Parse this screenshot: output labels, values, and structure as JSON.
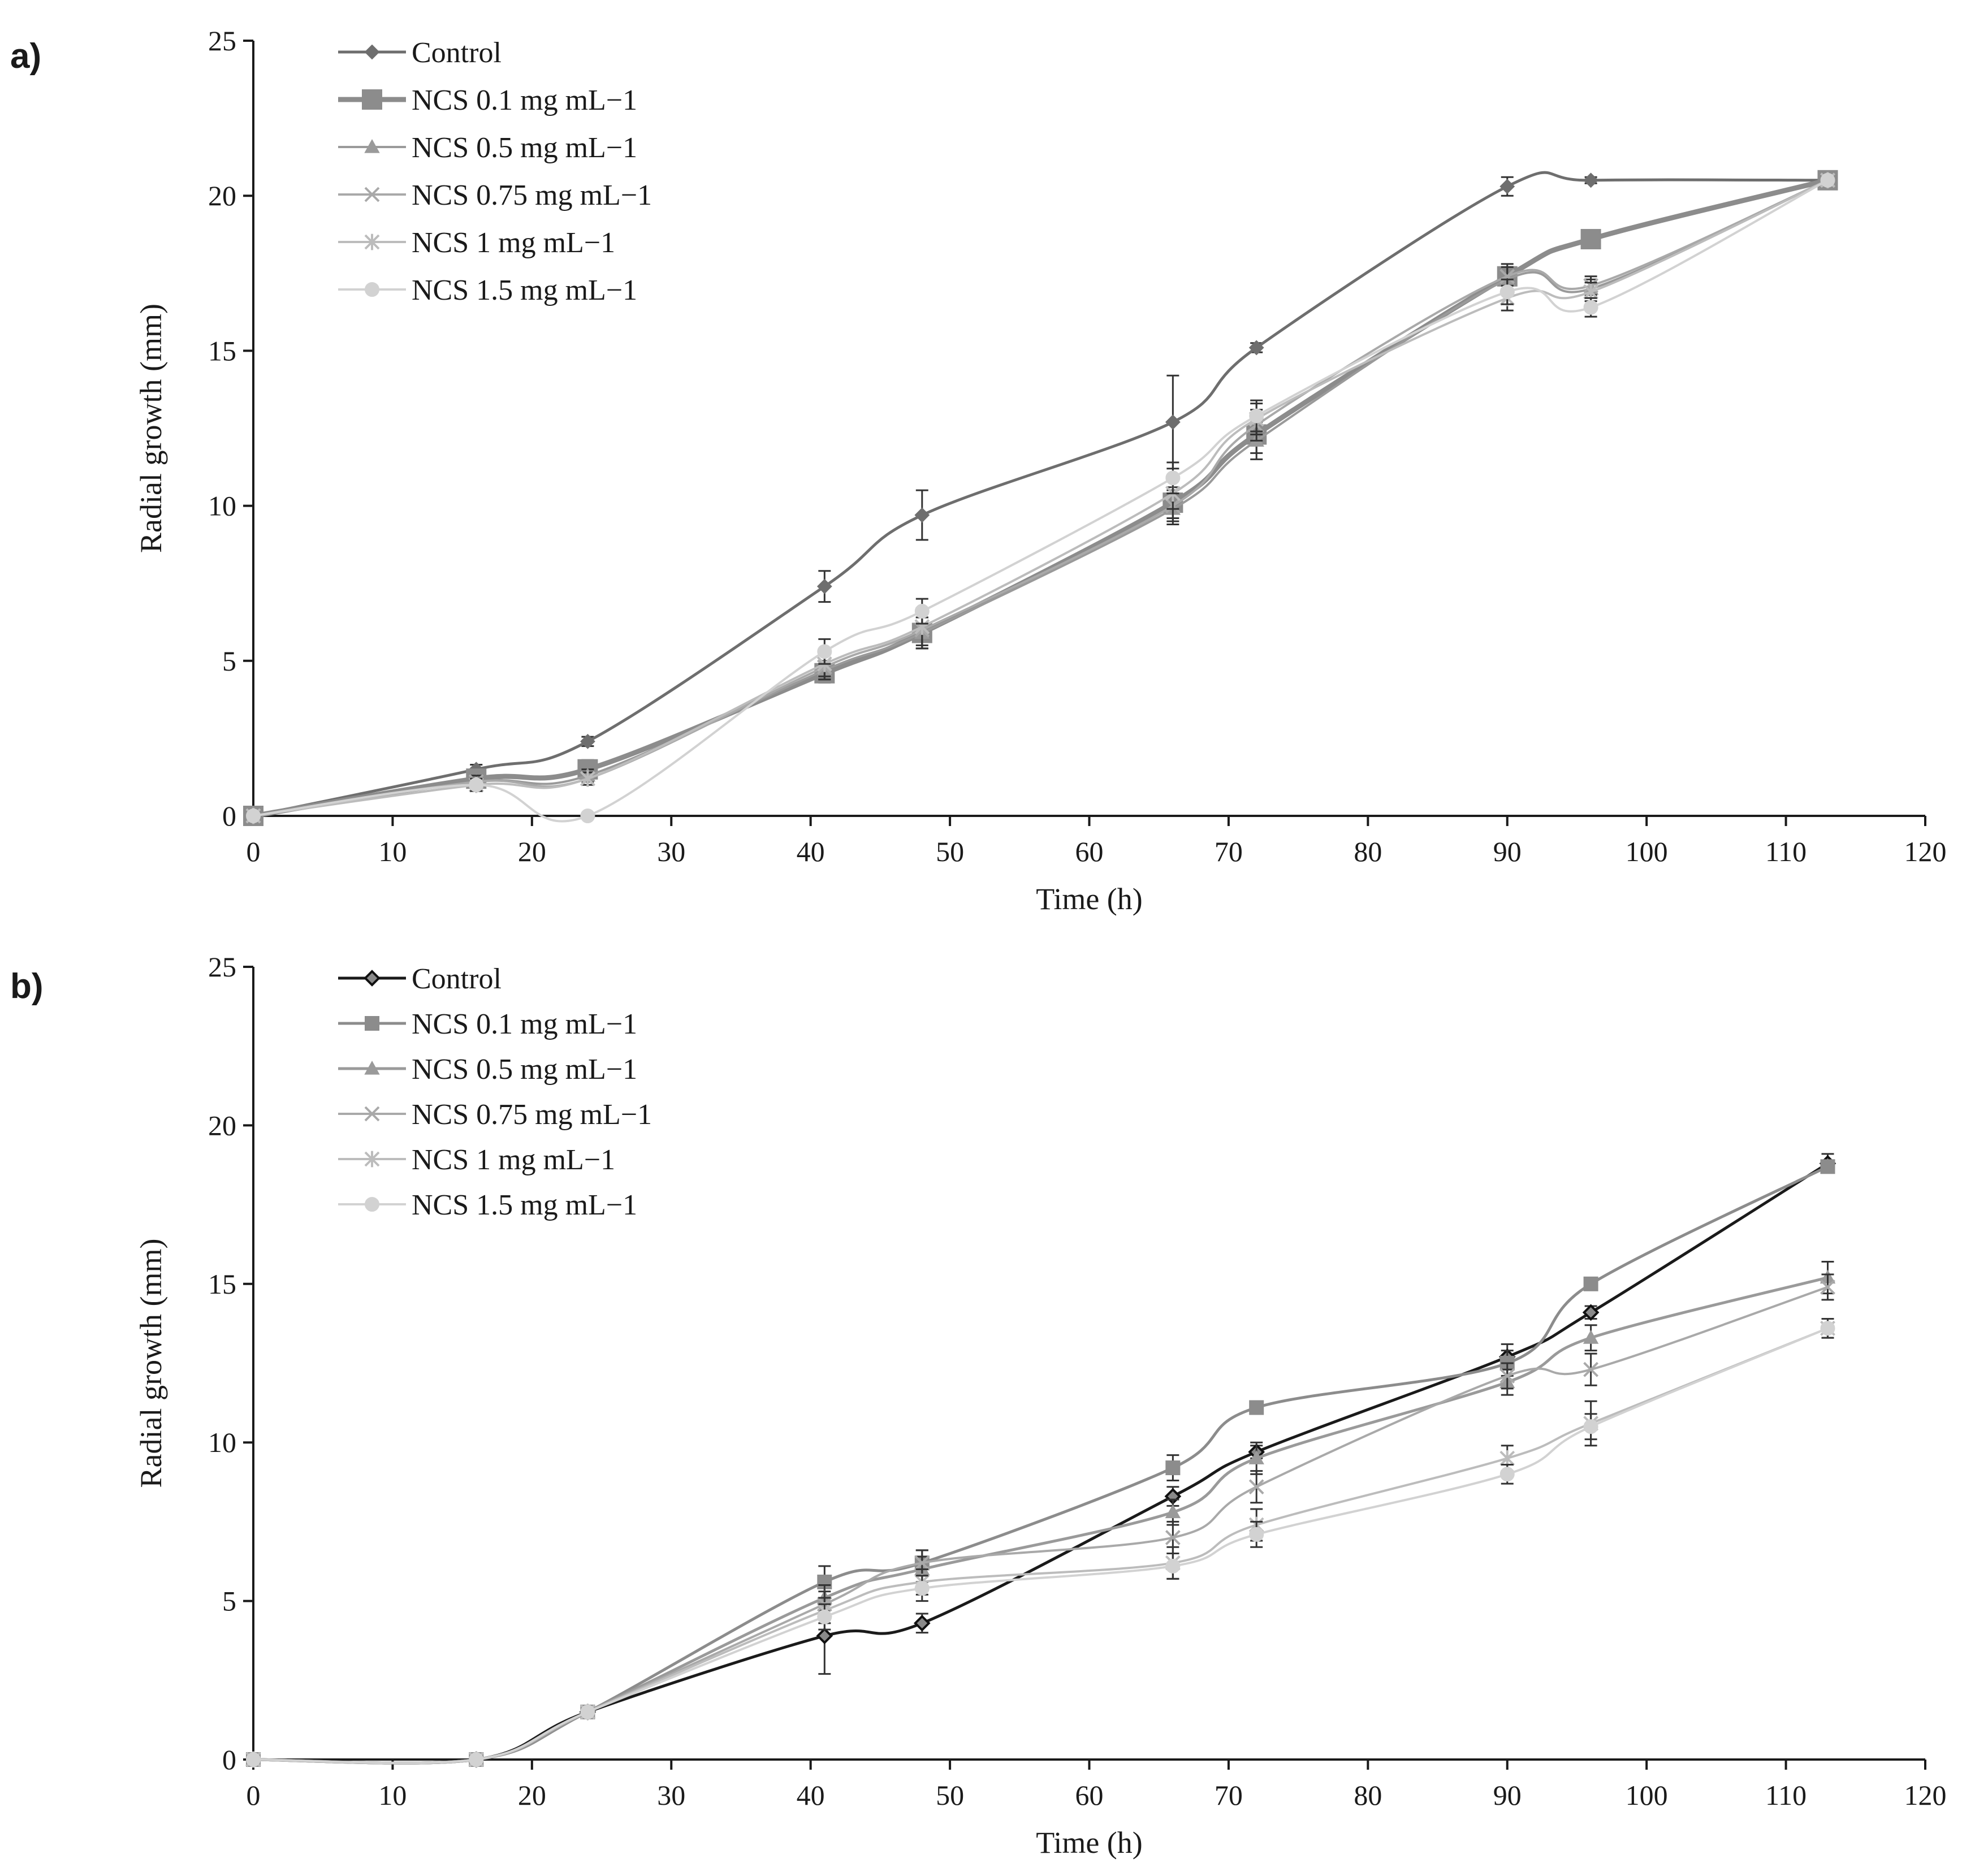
{
  "chart_data": [
    {
      "panel_label": "a)",
      "type": "line",
      "xlabel": "Time (h)",
      "ylabel": "Radial growth (mm)",
      "xlim": [
        0,
        120
      ],
      "ylim": [
        0,
        25
      ],
      "x_ticks": [
        "0",
        "10",
        "20",
        "30",
        "40",
        "50",
        "60",
        "70",
        "80",
        "90",
        "100",
        "110",
        "120"
      ],
      "y_ticks": [
        "0",
        "5",
        "10",
        "15",
        "20",
        "25"
      ],
      "grid": false,
      "legend_position": "top-left",
      "x": [
        0,
        16,
        24,
        41,
        48,
        66,
        72,
        90,
        96,
        113
      ],
      "series": [
        {
          "name": "Control",
          "color": "#6e6e6e",
          "marker": "diamond",
          "values": [
            0,
            1.5,
            2.4,
            7.4,
            9.7,
            12.7,
            15.1,
            20.3,
            20.5,
            20.5
          ],
          "errors": [
            0,
            0.15,
            0.15,
            0.5,
            0.8,
            1.5,
            0.15,
            0.3,
            0.1,
            0.1
          ]
        },
        {
          "name": "NCS 0.1 mg mL−1",
          "color": "#8c8c8c",
          "marker": "square",
          "values": [
            0,
            1.2,
            1.5,
            4.6,
            5.9,
            10.1,
            12.3,
            17.4,
            18.6,
            20.5
          ],
          "errors": [
            0,
            0.2,
            0.3,
            0.3,
            0.5,
            0.5,
            0.6,
            0.3,
            0.2,
            0.1
          ]
        },
        {
          "name": "NCS 0.5 mg mL−1",
          "color": "#9a9a9a",
          "marker": "triangle",
          "values": [
            0,
            1.1,
            1.3,
            4.7,
            5.9,
            9.9,
            12.1,
            17.3,
            17.0,
            20.5
          ],
          "errors": [
            0,
            0.2,
            0.2,
            0.3,
            0.5,
            0.5,
            0.6,
            0.4,
            0.3,
            0.1
          ]
        },
        {
          "name": "NCS 0.75 mg mL−1",
          "color": "#a9a9a9",
          "marker": "x",
          "values": [
            0,
            1.1,
            1.2,
            4.8,
            6.0,
            10.0,
            12.6,
            17.4,
            17.1,
            20.5
          ],
          "errors": [
            0,
            0.2,
            0.2,
            0.4,
            0.6,
            0.5,
            0.5,
            0.4,
            0.3,
            0.1
          ]
        },
        {
          "name": "NCS 1 mg mL−1",
          "color": "#bcbcbc",
          "marker": "asterisk",
          "values": [
            0,
            1.0,
            1.2,
            4.9,
            6.1,
            10.4,
            12.8,
            16.7,
            16.9,
            20.5
          ],
          "errors": [
            0,
            0.2,
            0.2,
            0.4,
            0.6,
            0.5,
            0.5,
            0.4,
            0.3,
            0.1
          ]
        },
        {
          "name": "NCS 1.5 mg mL−1",
          "color": "#d2d2d2",
          "marker": "circle",
          "values": [
            0,
            1.0,
            0,
            5.3,
            6.6,
            10.9,
            12.9,
            16.9,
            16.4,
            20.5
          ],
          "errors": [
            0,
            0.2,
            0,
            0.4,
            0.4,
            0.5,
            0.5,
            0.4,
            0.3,
            0.1
          ]
        }
      ]
    },
    {
      "panel_label": "b)",
      "type": "line",
      "xlabel": "Time (h)",
      "ylabel": "Radial growth (mm)",
      "xlim": [
        0,
        120
      ],
      "ylim": [
        0,
        25
      ],
      "x_ticks": [
        "0",
        "10",
        "20",
        "30",
        "40",
        "50",
        "60",
        "70",
        "80",
        "90",
        "100",
        "110",
        "120"
      ],
      "y_ticks": [
        "0",
        "5",
        "10",
        "15",
        "20",
        "25"
      ],
      "grid": false,
      "legend_position": "top-left",
      "x": [
        0,
        16,
        24,
        41,
        48,
        66,
        72,
        90,
        96,
        113
      ],
      "series": [
        {
          "name": "Control",
          "color": "#1a1a1a",
          "marker": "diamond-open",
          "values": [
            0,
            0,
            1.5,
            3.9,
            4.3,
            8.3,
            9.7,
            12.7,
            14.1,
            18.8
          ],
          "errors": [
            0,
            0,
            0,
            1.2,
            0.3,
            0.3,
            0.2,
            0.4,
            0.2,
            0.3
          ]
        },
        {
          "name": "NCS 0.1 mg mL−1",
          "color": "#8c8c8c",
          "marker": "square",
          "values": [
            0,
            0,
            1.5,
            5.6,
            6.2,
            9.2,
            11.1,
            12.5,
            15.0,
            18.7
          ],
          "errors": [
            0,
            0,
            0,
            0.5,
            0.4,
            0.4,
            0.2,
            0.4,
            0.2,
            0.2
          ]
        },
        {
          "name": "NCS 0.5 mg mL−1",
          "color": "#9a9a9a",
          "marker": "triangle",
          "values": [
            0,
            0,
            1.5,
            5.1,
            6.0,
            7.8,
            9.5,
            11.9,
            13.3,
            15.2
          ],
          "errors": [
            0,
            0,
            0,
            0.4,
            0.4,
            0.4,
            0.5,
            0.4,
            0.4,
            0.5
          ]
        },
        {
          "name": "NCS 0.75 mg mL−1",
          "color": "#a9a9a9",
          "marker": "x",
          "values": [
            0,
            0,
            1.5,
            4.9,
            6.2,
            7.0,
            8.6,
            12.1,
            12.3,
            14.9
          ],
          "errors": [
            0,
            0,
            0,
            0.4,
            0.4,
            0.5,
            0.5,
            0.4,
            0.5,
            0.4
          ]
        },
        {
          "name": "NCS 1 mg mL−1",
          "color": "#bcbcbc",
          "marker": "asterisk",
          "values": [
            0,
            0,
            1.5,
            4.7,
            5.6,
            6.2,
            7.4,
            9.5,
            10.6,
            13.6
          ],
          "errors": [
            0,
            0,
            0,
            0.4,
            0.4,
            0.5,
            0.5,
            0.4,
            0.7,
            0.3
          ]
        },
        {
          "name": "NCS 1.5 mg mL−1",
          "color": "#d2d2d2",
          "marker": "circle",
          "values": [
            0,
            0,
            1.5,
            4.5,
            5.4,
            6.1,
            7.1,
            9.0,
            10.5,
            13.6
          ],
          "errors": [
            0,
            0,
            0,
            0.4,
            0.4,
            0.4,
            0.4,
            0.3,
            0.4,
            0.3
          ]
        }
      ]
    }
  ]
}
